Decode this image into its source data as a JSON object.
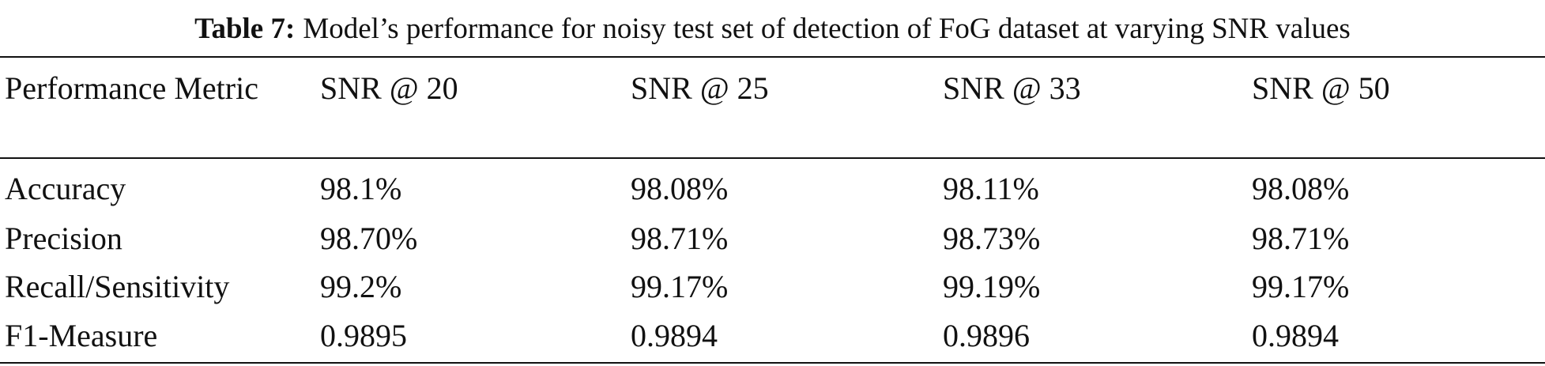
{
  "caption": {
    "label": "Table 7:",
    "text": "Model’s performance for noisy test set of detection of FoG dataset at varying SNR values"
  },
  "table": {
    "header": [
      "Performance Metric",
      "SNR @ 20",
      "SNR @ 25",
      "SNR @ 33",
      "SNR @ 50"
    ],
    "rows": [
      [
        "Accuracy",
        "98.1%",
        "98.08%",
        "98.11%",
        "98.08%"
      ],
      [
        "Precision",
        "98.70%",
        "98.71%",
        "98.73%",
        "98.71%"
      ],
      [
        "Recall/Sensitivity",
        "99.2%",
        "99.17%",
        "99.19%",
        "99.17%"
      ],
      [
        "F1-Measure",
        "0.9895",
        "0.9894",
        "0.9896",
        "0.9894"
      ]
    ]
  }
}
